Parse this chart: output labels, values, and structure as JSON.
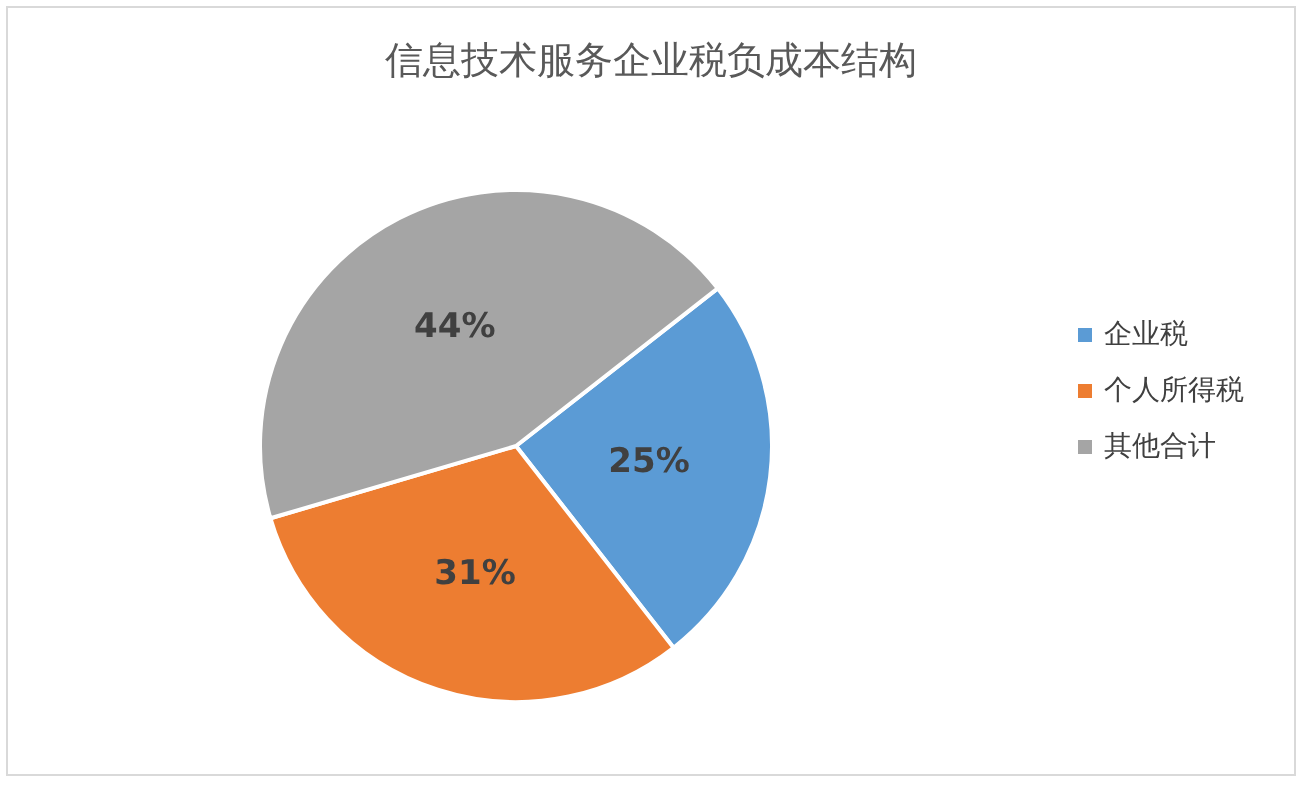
{
  "chart_data": {
    "type": "pie",
    "title": "信息技术服务企业税负成本结构",
    "categories": [
      "企业税",
      "个人所得税",
      "其他合计"
    ],
    "values": [
      25,
      31,
      44
    ],
    "value_labels": [
      "25%",
      "31%",
      "44%"
    ],
    "colors": [
      "#5b9bd5",
      "#ed7d31",
      "#a5a5a5"
    ],
    "legend": "right"
  }
}
